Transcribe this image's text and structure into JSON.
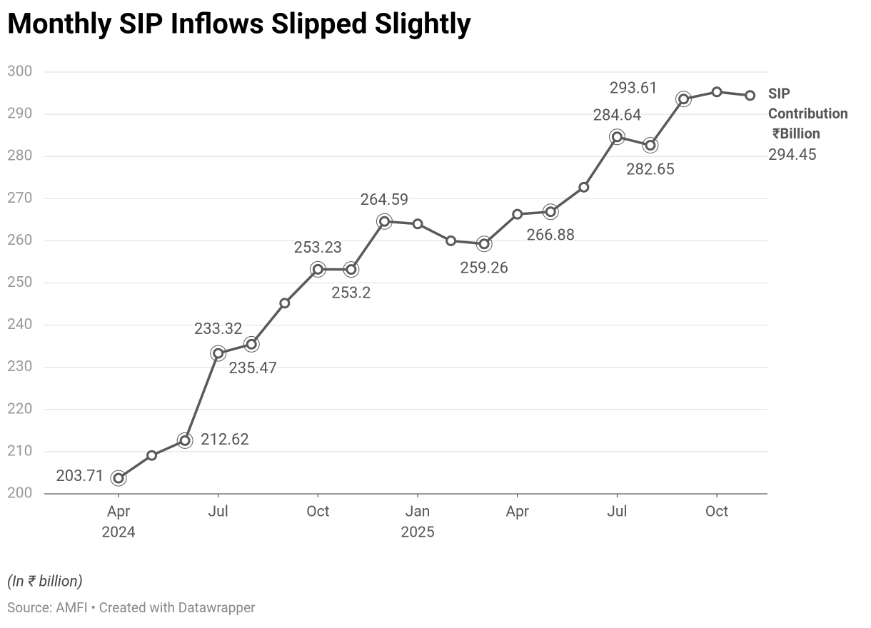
{
  "chart_data": {
    "type": "line",
    "title": "Monthly SIP Inflows Slipped Slightly",
    "note": "(In ₹ billion)",
    "source": "Source: AMFI • Created with Datawrapper",
    "x": [
      "2024-04",
      "2024-05",
      "2024-06",
      "2024-07",
      "2024-08",
      "2024-09",
      "2024-10",
      "2024-11",
      "2024-12",
      "2025-01",
      "2025-02",
      "2025-03",
      "2025-04",
      "2025-05",
      "2025-06",
      "2025-07",
      "2025-08",
      "2025-09",
      "2025-10",
      "2025-11"
    ],
    "series": [
      {
        "name": "SIP Contribution ₹Billion",
        "color": "#5a5a5a",
        "values": [
          203.71,
          209.1,
          212.62,
          233.32,
          235.47,
          245.2,
          253.23,
          253.2,
          264.59,
          264.0,
          260.0,
          259.26,
          266.3,
          266.88,
          272.7,
          284.64,
          282.65,
          293.61,
          295.3,
          294.45
        ],
        "value_labels": [
          "203.71",
          null,
          "212.62",
          "233.32",
          "235.47",
          null,
          "253.23",
          "253.2",
          "264.59",
          null,
          null,
          "259.26",
          null,
          "266.88",
          null,
          "284.64",
          "282.65",
          "293.61",
          null,
          "294.45"
        ]
      }
    ],
    "ylim": [
      200,
      300
    ],
    "yticks": [
      200,
      210,
      220,
      230,
      240,
      250,
      260,
      270,
      280,
      290,
      300
    ],
    "xticks": [
      {
        "value": "2024-04",
        "label": "Apr",
        "year": "2024"
      },
      {
        "value": "2024-07",
        "label": "Jul"
      },
      {
        "value": "2024-10",
        "label": "Oct"
      },
      {
        "value": "2025-01",
        "label": "Jan",
        "year": "2025"
      },
      {
        "value": "2025-04",
        "label": "Apr"
      },
      {
        "value": "2025-07",
        "label": "Jul"
      },
      {
        "value": "2025-10",
        "label": "Oct"
      }
    ],
    "grid": true
  }
}
